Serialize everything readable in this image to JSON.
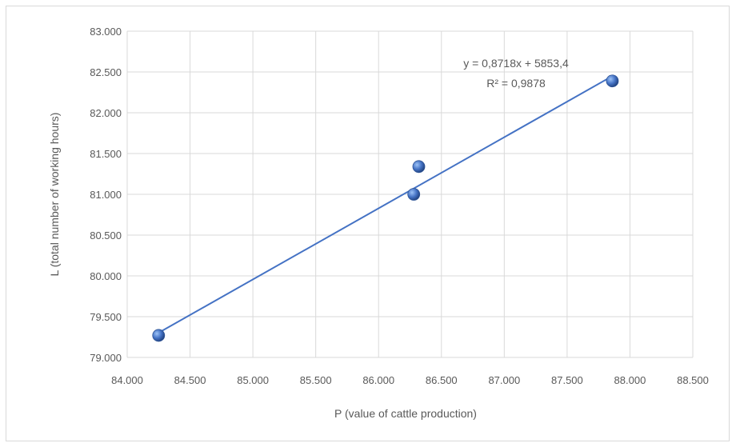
{
  "chart_data": {
    "type": "scatter",
    "xlabel": "P (value of cattle production)",
    "ylabel": "L (total number of working hours)",
    "xlim": [
      84000,
      88500
    ],
    "ylim": [
      79000,
      83000
    ],
    "x_ticks": [
      84000,
      84500,
      85000,
      85500,
      86000,
      86500,
      87000,
      87500,
      88000,
      88500
    ],
    "y_ticks": [
      79000,
      79500,
      80000,
      80500,
      81000,
      81500,
      82000,
      82500,
      83000
    ],
    "x_tick_labels": [
      "84.000",
      "84.500",
      "85.000",
      "85.500",
      "86.000",
      "86.500",
      "87.000",
      "87.500",
      "88.000",
      "88.500"
    ],
    "y_tick_labels": [
      "79.000",
      "79.500",
      "80.000",
      "80.500",
      "81.000",
      "81.500",
      "82.000",
      "82.500",
      "83.000"
    ],
    "points": [
      {
        "x": 84250,
        "y": 79270
      },
      {
        "x": 86280,
        "y": 81000
      },
      {
        "x": 86320,
        "y": 81340
      },
      {
        "x": 87860,
        "y": 82390
      }
    ],
    "trendline": {
      "slope": 0.8718,
      "intercept": 5853.4,
      "x_range": [
        84250,
        87860
      ]
    },
    "equation_label": "y = 0,8718x + 5853,4",
    "r2_label": "R² = 0,9878",
    "grid": true,
    "colors": {
      "marker": "#4472c4",
      "trendline": "#4472c4",
      "grid": "#d9d9d9",
      "text": "#595959"
    }
  }
}
